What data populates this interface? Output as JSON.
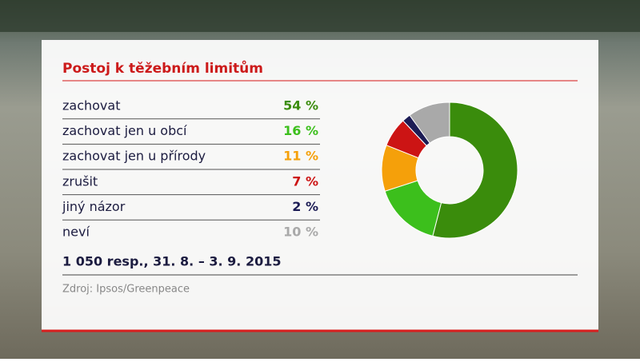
{
  "chart_data": {
    "type": "pie",
    "donut": true,
    "title": "Postoj k těžebním limitům",
    "categories": [
      "zachovat",
      "zachovat jen u obcí",
      "zachovat jen u přírody",
      "zrušit",
      "jiný názor",
      "neví"
    ],
    "values": [
      54,
      16,
      11,
      7,
      2,
      10
    ],
    "value_labels": [
      "54 %",
      "16 %",
      "11 %",
      "7 %",
      "2 %",
      "10 %"
    ],
    "colors": [
      "#3a8c0c",
      "#3cbf1c",
      "#f5a00a",
      "#cc1414",
      "#1c1c55",
      "#a9a9a9"
    ],
    "note": "1 050 resp., 31. 8. – 3. 9. 2015",
    "source": "Zdroj: Ipsos/Greenpeace"
  }
}
